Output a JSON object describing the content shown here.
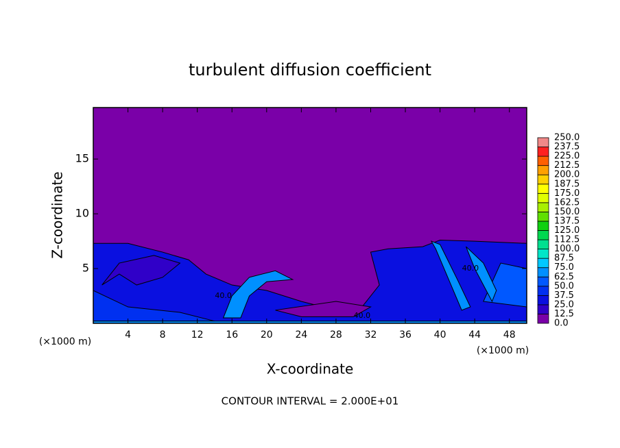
{
  "chart_data": {
    "type": "contour",
    "title": "turbulent diffusion coefficient",
    "x_label": "X-coordinate",
    "y_label": "Z-coordinate",
    "x_unit_label": "(×1000 m)",
    "footnote": "CONTOUR INTERVAL = 2.000E+01",
    "xlim": [
      0,
      50
    ],
    "ylim": [
      0,
      19.7
    ],
    "xticks": [
      4,
      8,
      12,
      16,
      20,
      24,
      28,
      32,
      36,
      40,
      44,
      48
    ],
    "yticks": [
      5,
      10,
      15
    ],
    "colorbar": {
      "levels": [
        {
          "value": 0,
          "label": "0.0"
        },
        12.5,
        {
          "value": 25,
          "label": "25.0"
        },
        37.5,
        {
          "value": 50,
          "label": "50.0"
        },
        62.5,
        {
          "value": 75,
          "label": "75.0"
        },
        87.5,
        {
          "value": 100,
          "label": "100.0"
        },
        112.5,
        {
          "value": 125,
          "label": "125.0"
        },
        137.5,
        {
          "value": 150,
          "label": "150.0"
        },
        162.5,
        {
          "value": 175,
          "label": "175.0"
        },
        187.5,
        {
          "value": 200,
          "label": "200.0"
        },
        212.5,
        {
          "value": 225,
          "label": "225.0"
        },
        237.5,
        {
          "value": 250,
          "label": "250.0"
        }
      ],
      "colors": [
        "#7a00a8",
        "#3000c8",
        "#0a10e0",
        "#0030f0",
        "#0058ff",
        "#0090ff",
        "#00c8ff",
        "#00e6c8",
        "#00e090",
        "#00d850",
        "#10d010",
        "#60e000",
        "#a8f000",
        "#e0ff00",
        "#ffff00",
        "#ffd000",
        "#ffa000",
        "#ff6000",
        "#ff2020",
        "#f08888"
      ]
    },
    "regions": [
      {
        "level": 0,
        "points": [
          [
            0,
            0
          ],
          [
            50,
            0
          ],
          [
            50,
            19.7
          ],
          [
            0,
            19.7
          ]
        ]
      },
      {
        "level": 25,
        "points": [
          [
            0,
            0
          ],
          [
            0,
            7.3
          ],
          [
            4,
            7.3
          ],
          [
            8,
            6.5
          ],
          [
            11,
            5.8
          ],
          [
            13,
            4.5
          ],
          [
            16,
            3.5
          ],
          [
            20,
            3.0
          ],
          [
            24,
            2.0
          ],
          [
            28,
            1.2
          ],
          [
            31,
            1.5
          ],
          [
            33,
            3.5
          ],
          [
            32,
            6.5
          ],
          [
            34,
            6.8
          ],
          [
            38,
            7.0
          ],
          [
            40,
            7.6
          ],
          [
            44,
            7.5
          ],
          [
            50,
            7.3
          ],
          [
            50,
            0
          ]
        ]
      },
      {
        "level": 0,
        "points": [
          [
            21,
            1.2
          ],
          [
            24,
            0.6
          ],
          [
            30,
            0.6
          ],
          [
            32,
            1.5
          ],
          [
            28,
            2.0
          ]
        ]
      },
      {
        "level": 12.5,
        "points": [
          [
            1,
            3.5
          ],
          [
            3,
            5.5
          ],
          [
            7,
            6.2
          ],
          [
            10,
            5.5
          ],
          [
            8,
            4.2
          ],
          [
            5,
            3.5
          ],
          [
            3,
            4.5
          ]
        ]
      },
      {
        "level": 37.5,
        "points": [
          [
            0,
            0.2
          ],
          [
            0,
            3
          ],
          [
            4,
            1.5
          ],
          [
            10,
            1
          ],
          [
            14,
            0.2
          ]
        ]
      },
      {
        "level": 50,
        "points": [
          [
            45,
            2
          ],
          [
            47,
            5.5
          ],
          [
            50,
            5
          ],
          [
            50,
            1.5
          ]
        ]
      },
      {
        "level": 62.5,
        "points": [
          [
            15,
            0.5
          ],
          [
            16,
            2.5
          ],
          [
            18,
            4.2
          ],
          [
            21,
            4.8
          ],
          [
            23,
            4
          ],
          [
            20,
            3.8
          ],
          [
            18,
            2.5
          ],
          [
            17,
            0.5
          ]
        ]
      },
      {
        "level": 62.5,
        "points": [
          [
            39,
            7.5
          ],
          [
            40,
            7.2
          ],
          [
            42,
            4
          ],
          [
            43.5,
            1.5
          ],
          [
            42.5,
            1.2
          ],
          [
            41,
            4
          ],
          [
            39.5,
            6.8
          ]
        ]
      },
      {
        "level": 62.5,
        "points": [
          [
            43,
            7
          ],
          [
            44,
            5
          ],
          [
            46,
            2
          ],
          [
            46.5,
            3
          ],
          [
            45,
            5.5
          ]
        ]
      },
      {
        "level": 62.5,
        "points": [
          [
            0,
            0
          ],
          [
            50,
            0
          ],
          [
            50,
            0.2
          ],
          [
            0,
            0.2
          ]
        ]
      }
    ],
    "contour_labels": [
      {
        "x": 15,
        "z": 2.5,
        "text": "40.0"
      },
      {
        "x": 31,
        "z": 0.7,
        "text": "40.0"
      },
      {
        "x": 43.5,
        "z": 5,
        "text": "40.0"
      }
    ]
  }
}
